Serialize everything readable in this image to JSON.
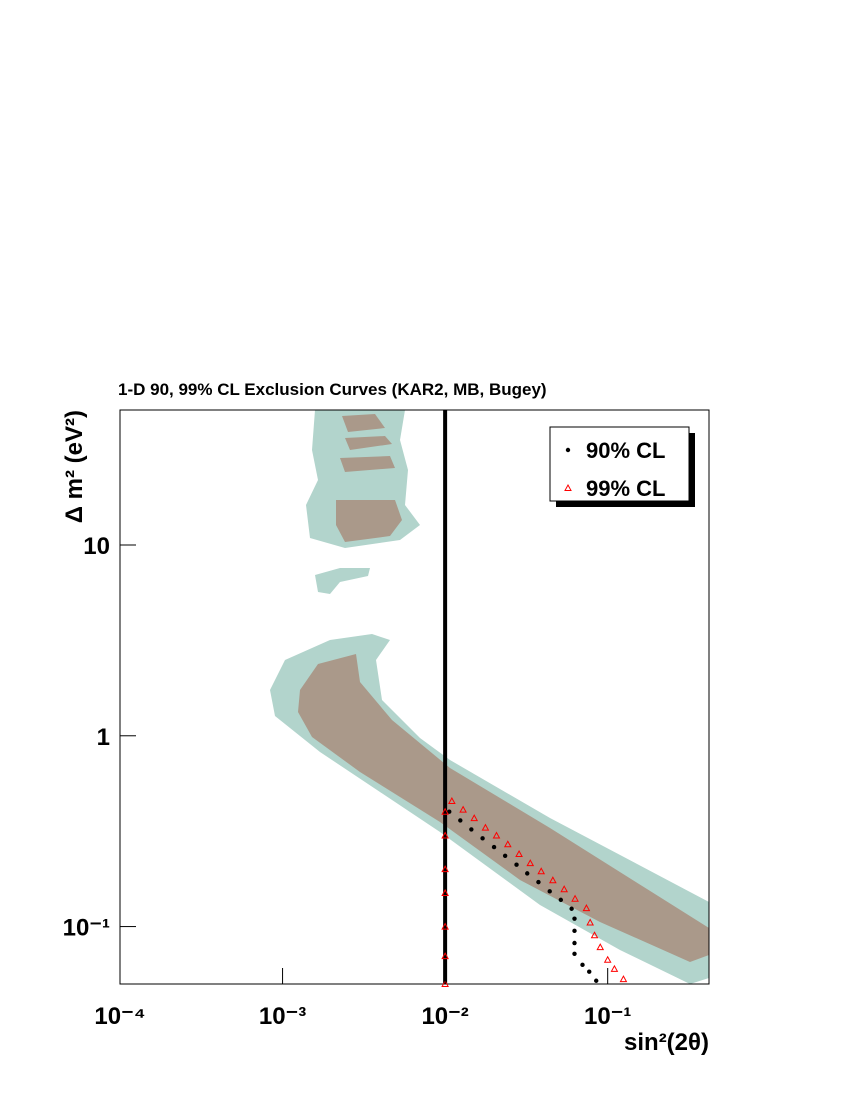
{
  "chart_data": {
    "type": "scatter",
    "title": "1-D 90, 99% CL Exclusion Curves (KAR2, MB, Bugey)",
    "x_label": "sin²(2θ)",
    "y_label": "Δ m² (eV²)",
    "x_log": true,
    "y_log": true,
    "xlim": [
      0.0001,
      0.42
    ],
    "ylim": [
      0.05,
      51
    ],
    "xticks": [
      {
        "value": 0.0001,
        "label": "10⁻⁴"
      },
      {
        "value": 0.001,
        "label": "10⁻³"
      },
      {
        "value": 0.01,
        "label": "10⁻²"
      },
      {
        "value": 0.1,
        "label": "10⁻¹"
      }
    ],
    "yticks": [
      {
        "value": 0.1,
        "label": "10⁻¹"
      },
      1,
      10
    ],
    "vline": 0.01,
    "legend": "upper right",
    "series": [
      {
        "name": "90% CL",
        "color": "#000000",
        "marker": "circle",
        "x": [
          0.0106,
          0.0124,
          0.0145,
          0.017,
          0.02,
          0.0234,
          0.0275,
          0.032,
          0.0375,
          0.044,
          0.0515,
          0.06,
          0.0625,
          0.0625,
          0.0625,
          0.0625,
          0.07,
          0.077,
          0.085
        ],
        "values": [
          0.4,
          0.36,
          0.323,
          0.29,
          0.261,
          0.235,
          0.211,
          0.19,
          0.171,
          0.153,
          0.138,
          0.124,
          0.11,
          0.095,
          0.082,
          0.072,
          0.063,
          0.058,
          0.052
        ]
      },
      {
        "name": "99% CL",
        "color": "#ff0000",
        "marker": "triangle",
        "x": [
          0.01,
          0.01,
          0.01,
          0.01,
          0.01,
          0.01,
          0.01,
          0.011,
          0.0129,
          0.0151,
          0.0177,
          0.0207,
          0.0243,
          0.0285,
          0.0334,
          0.039,
          0.046,
          0.054,
          0.063,
          0.074,
          0.078,
          0.083,
          0.09,
          0.1,
          0.11,
          0.125
        ],
        "values": [
          0.4,
          0.3,
          0.2,
          0.15,
          0.1,
          0.07,
          0.05,
          0.455,
          0.41,
          0.37,
          0.33,
          0.3,
          0.27,
          0.24,
          0.215,
          0.195,
          0.175,
          0.157,
          0.14,
          0.125,
          0.105,
          0.09,
          0.078,
          0.067,
          0.06,
          0.053
        ]
      }
    ]
  }
}
